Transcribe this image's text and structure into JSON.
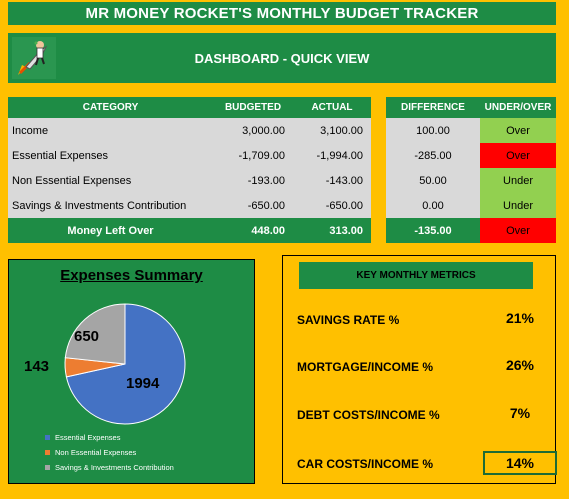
{
  "title": "MR MONEY ROCKET'S MONTHLY BUDGET TRACKER",
  "dashboard_title": "DASHBOARD - QUICK VIEW",
  "main_table": {
    "headers": {
      "category": "CATEGORY",
      "budgeted": "BUDGETED",
      "actual": "ACTUAL"
    },
    "rows": [
      {
        "category": "Income",
        "budgeted": "3,000.00",
        "actual": "3,100.00"
      },
      {
        "category": "Essential Expenses",
        "budgeted": "-1,709.00",
        "actual": "-1,994.00"
      },
      {
        "category": "Non Essential Expenses",
        "budgeted": "-193.00",
        "actual": "-143.00"
      },
      {
        "category": "Savings & Investments Contribution",
        "budgeted": "-650.00",
        "actual": "-650.00"
      }
    ],
    "total": {
      "category": "Money Left Over",
      "budgeted": "448.00",
      "actual": "313.00"
    }
  },
  "diff_table": {
    "headers": {
      "difference": "DIFFERENCE",
      "status": "UNDER/OVER"
    },
    "rows": [
      {
        "difference": "100.00",
        "status": "Over"
      },
      {
        "difference": "-285.00",
        "status": "Over"
      },
      {
        "difference": "50.00",
        "status": "Under"
      },
      {
        "difference": "0.00",
        "status": "Under"
      }
    ],
    "total": {
      "difference": "-135.00",
      "status": "Over"
    }
  },
  "colors": {
    "background": "#FFC000",
    "header_green": "#1E8C45",
    "cell_gray": "#D9D9D9",
    "good": "#92D050",
    "bad": "#FF0000"
  },
  "chart_data": {
    "type": "pie",
    "title": "Expenses Summary",
    "categories": [
      "Essential Expenses",
      "Non Essential Expenses",
      "Savings & Investments Contribution"
    ],
    "values": [
      1994,
      143,
      650
    ],
    "colors": [
      "#4472C4",
      "#ED7D31",
      "#A5A5A5"
    ],
    "legend": "bottom"
  },
  "metrics": {
    "header": "KEY MONTHLY METRICS",
    "items": [
      {
        "label": "SAVINGS RATE %",
        "value": "21%"
      },
      {
        "label": "MORTGAGE/INCOME %",
        "value": "26%"
      },
      {
        "label": "DEBT COSTS/INCOME %",
        "value": "7%"
      },
      {
        "label": "CAR COSTS/INCOME %",
        "value": "14%"
      }
    ]
  }
}
